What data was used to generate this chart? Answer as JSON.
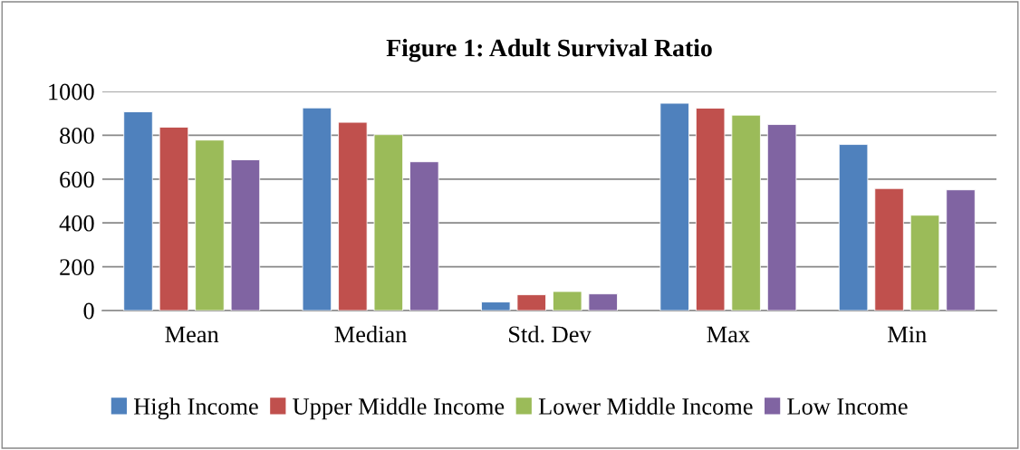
{
  "chart_data": {
    "type": "bar",
    "title": "Figure 1: Adult Survival Ratio",
    "categories": [
      "Mean",
      "Median",
      "Std. Dev",
      "Max",
      "Min"
    ],
    "series": [
      {
        "name": "High Income",
        "color": "#4f81bd",
        "values": [
          907,
          925,
          39,
          946,
          758
        ]
      },
      {
        "name": "Upper Middle Income",
        "color": "#c0504d",
        "values": [
          837,
          859,
          72,
          924,
          557
        ]
      },
      {
        "name": "Lower Middle Income",
        "color": "#9bbb59",
        "values": [
          778,
          803,
          87,
          892,
          435
        ]
      },
      {
        "name": "Low Income",
        "color": "#8064a2",
        "values": [
          688,
          679,
          76,
          849,
          551
        ]
      }
    ],
    "ylim": [
      0,
      1000
    ],
    "yticks": [
      0,
      200,
      400,
      600,
      800,
      1000
    ],
    "grid": "y",
    "legend": "bottom"
  }
}
